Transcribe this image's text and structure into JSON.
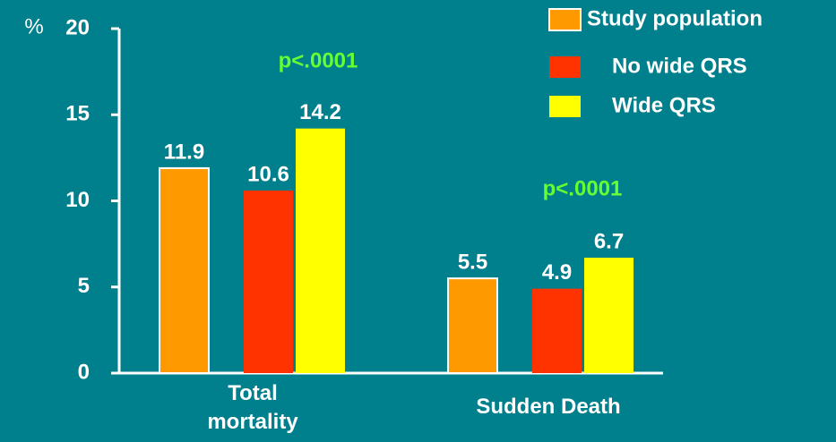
{
  "chart_data": {
    "type": "bar",
    "ylabel": "%",
    "categories": [
      "Total mortality",
      "Sudden Death"
    ],
    "series": [
      {
        "name": "Study population",
        "color": "#ff9900",
        "edgecolor": "#ffffff",
        "values": [
          11.9,
          5.5
        ]
      },
      {
        "name": "No wide QRS",
        "color": "#ff3300",
        "values": [
          10.6,
          4.9
        ]
      },
      {
        "name": "Wide QRS",
        "color": "#ffff00",
        "values": [
          14.2,
          6.7
        ]
      }
    ],
    "annotations": [
      "p<.0001",
      "p<.0001"
    ],
    "ylim": [
      0,
      20
    ],
    "yticks": [
      0,
      5,
      10,
      15,
      20
    ],
    "grid": false,
    "legend": "top-right"
  }
}
